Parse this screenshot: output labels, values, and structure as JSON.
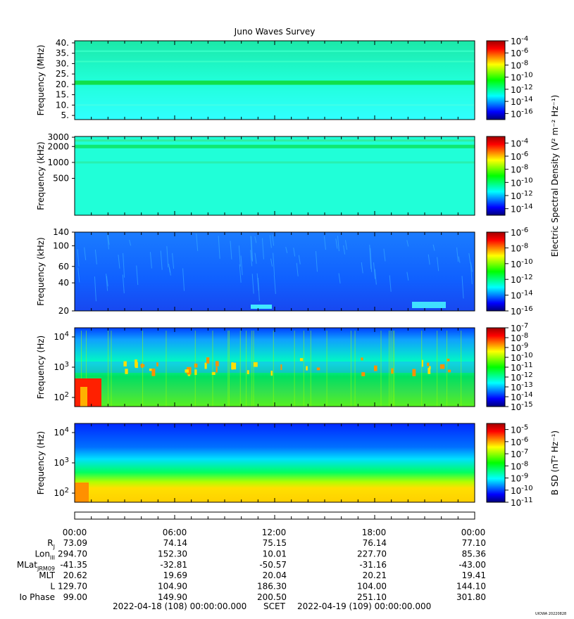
{
  "title": "Juno Waves Survey",
  "colors": {
    "colormap": [
      "#00007a",
      "#0000ff",
      "#0080ff",
      "#00ffff",
      "#00ff80",
      "#00ff00",
      "#80ff00",
      "#ffff00",
      "#ff8000",
      "#ff0000",
      "#a00000"
    ],
    "panel_e_base": "#20ffd8",
    "panel_e_band": "#10e870",
    "panel_low_bg": "#1060ff",
    "panel_low_top": "#0040ff",
    "panel_low_mid": "#00e060",
    "panel_b_top": "#0028ff",
    "panel_b_low": "#ffe000"
  },
  "chart_data": [
    {
      "type": "heatmap",
      "panel": "e-hf",
      "ylabel": "Frequency (MHz)",
      "yticks": [
        "40.",
        "35.",
        "30.",
        "25.",
        "20.",
        "15.",
        "10.",
        "5."
      ],
      "yvalues": [
        40,
        35,
        30,
        25,
        20,
        15,
        10,
        5
      ],
      "ylim": [
        3,
        41
      ],
      "yscale": "linear",
      "colorbar_ticks": [
        "-4",
        "-6",
        "-8",
        "-10",
        "-12",
        "-14",
        "-16"
      ],
      "colorbar_values": [
        -4,
        -6,
        -8,
        -10,
        -12,
        -14,
        -16
      ],
      "colorbar_range": [
        -17,
        -4
      ]
    },
    {
      "type": "heatmap",
      "panel": "e-mf",
      "ylabel": "Frequency (kHz)",
      "yticks": [
        "3000",
        "2000",
        "1000",
        "500"
      ],
      "yvalues": [
        3000,
        2000,
        1000,
        500
      ],
      "ylim": [
        100,
        3100
      ],
      "yscale": "log",
      "colorbar_ticks": [
        "-4",
        "-6",
        "-8",
        "-10",
        "-12",
        "-14"
      ],
      "colorbar_values": [
        -4,
        -6,
        -8,
        -10,
        -12,
        -14
      ],
      "colorbar_range": [
        -15,
        -3
      ],
      "colorbar_label": "Electric Spectral Density (V² m⁻² Hz⁻¹)"
    },
    {
      "type": "heatmap",
      "panel": "e-lf",
      "ylabel": "Frequency (kHz)",
      "yticks": [
        "140",
        "100",
        "60",
        "40",
        "20"
      ],
      "yvalues": [
        140,
        100,
        60,
        40,
        20
      ],
      "ylim": [
        20,
        140
      ],
      "yscale": "log",
      "colorbar_ticks": [
        "-6",
        "-8",
        "-10",
        "-12",
        "-14",
        "-16"
      ],
      "colorbar_values": [
        -6,
        -8,
        -10,
        -12,
        -14,
        -16
      ],
      "colorbar_range": [
        -16,
        -6
      ]
    },
    {
      "type": "heatmap",
      "panel": "e-vlf",
      "ylabel": "Frequency (Hz)",
      "yticks_exp": [
        "4",
        "3",
        "2"
      ],
      "yvalues": [
        10000,
        1000,
        100
      ],
      "ylim": [
        50,
        20000
      ],
      "yscale": "log",
      "colorbar_ticks": [
        "-7",
        "-8",
        "-9",
        "-10",
        "-11",
        "-12",
        "-13",
        "-14",
        "-15"
      ],
      "colorbar_values": [
        -7,
        -8,
        -9,
        -10,
        -11,
        -12,
        -13,
        -14,
        -15
      ],
      "colorbar_range": [
        -15,
        -7
      ]
    },
    {
      "type": "heatmap",
      "panel": "b-vlf",
      "ylabel": "Frequency (Hz)",
      "yticks_exp": [
        "4",
        "3",
        "2"
      ],
      "yvalues": [
        10000,
        1000,
        100
      ],
      "ylim": [
        50,
        20000
      ],
      "yscale": "log",
      "colorbar_ticks": [
        "-5",
        "-6",
        "-7",
        "-8",
        "-9",
        "-10",
        "-11"
      ],
      "colorbar_values": [
        -5,
        -6,
        -7,
        -8,
        -9,
        -10,
        -11
      ],
      "colorbar_range": [
        -11,
        -4.5
      ],
      "colorbar_label": "B SD (nT² Hz⁻¹)"
    }
  ],
  "ephemeris": {
    "time_ticks": [
      "00:00",
      "06:00",
      "12:00",
      "18:00",
      "00:00"
    ],
    "rows": [
      {
        "label": "R",
        "sub": "J",
        "values": [
          "73.09",
          "74.14",
          "75.15",
          "76.14",
          "77.10"
        ]
      },
      {
        "label": "Lon",
        "sub": "III",
        "values": [
          "294.70",
          "152.30",
          "10.01",
          "227.70",
          "85.36"
        ]
      },
      {
        "label": "MLat",
        "sub": "JRM09",
        "values": [
          "-41.35",
          "-32.81",
          "-50.57",
          "-31.16",
          "-43.00"
        ]
      },
      {
        "label": "MLT",
        "sub": "",
        "values": [
          "20.62",
          "19.69",
          "20.04",
          "20.21",
          "19.41"
        ]
      },
      {
        "label": "L",
        "sub": "",
        "values": [
          "129.70",
          "104.90",
          "186.30",
          "104.00",
          "144.10"
        ]
      },
      {
        "label": "Io Phase",
        "sub": "",
        "values": [
          "99.00",
          "149.90",
          "200.50",
          "251.10",
          "301.80"
        ]
      }
    ]
  },
  "footer": {
    "start": "2022-04-18 (108) 00:00:00.000",
    "scet": "SCET",
    "end": "2022-04-19 (109) 00:00:00.000",
    "stamp": "UIOWA 20220828"
  }
}
